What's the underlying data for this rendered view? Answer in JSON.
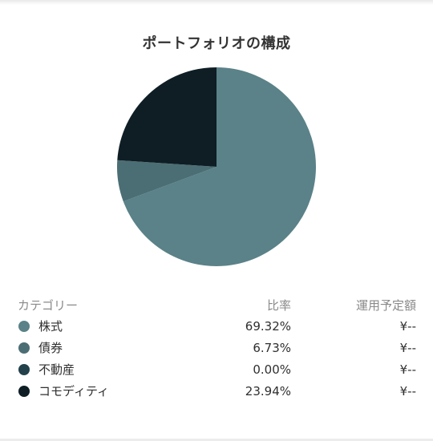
{
  "title": "ポートフォリオの構成",
  "table": {
    "headers": {
      "category": "カテゴリー",
      "ratio": "比率",
      "amount": "運用予定額"
    },
    "rows": [
      {
        "label": "株式",
        "ratio": "69.32%",
        "amount": "¥--",
        "color": "#5a8288"
      },
      {
        "label": "債券",
        "ratio": "6.73%",
        "amount": "¥--",
        "color": "#4b6e74"
      },
      {
        "label": "不動産",
        "ratio": "0.00%",
        "amount": "¥--",
        "color": "#23414a"
      },
      {
        "label": "コモディティ",
        "ratio": "23.94%",
        "amount": "¥--",
        "color": "#0e1e24"
      }
    ]
  },
  "chart_data": {
    "type": "pie",
    "title": "ポートフォリオの構成",
    "categories": [
      "株式",
      "債券",
      "不動産",
      "コモディティ"
    ],
    "values": [
      69.32,
      6.73,
      0.0,
      23.94
    ],
    "colors": [
      "#5a8288",
      "#4b6e74",
      "#23414a",
      "#0e1e24"
    ],
    "start_angle": "12 o'clock, clockwise",
    "legend": "table-below"
  }
}
